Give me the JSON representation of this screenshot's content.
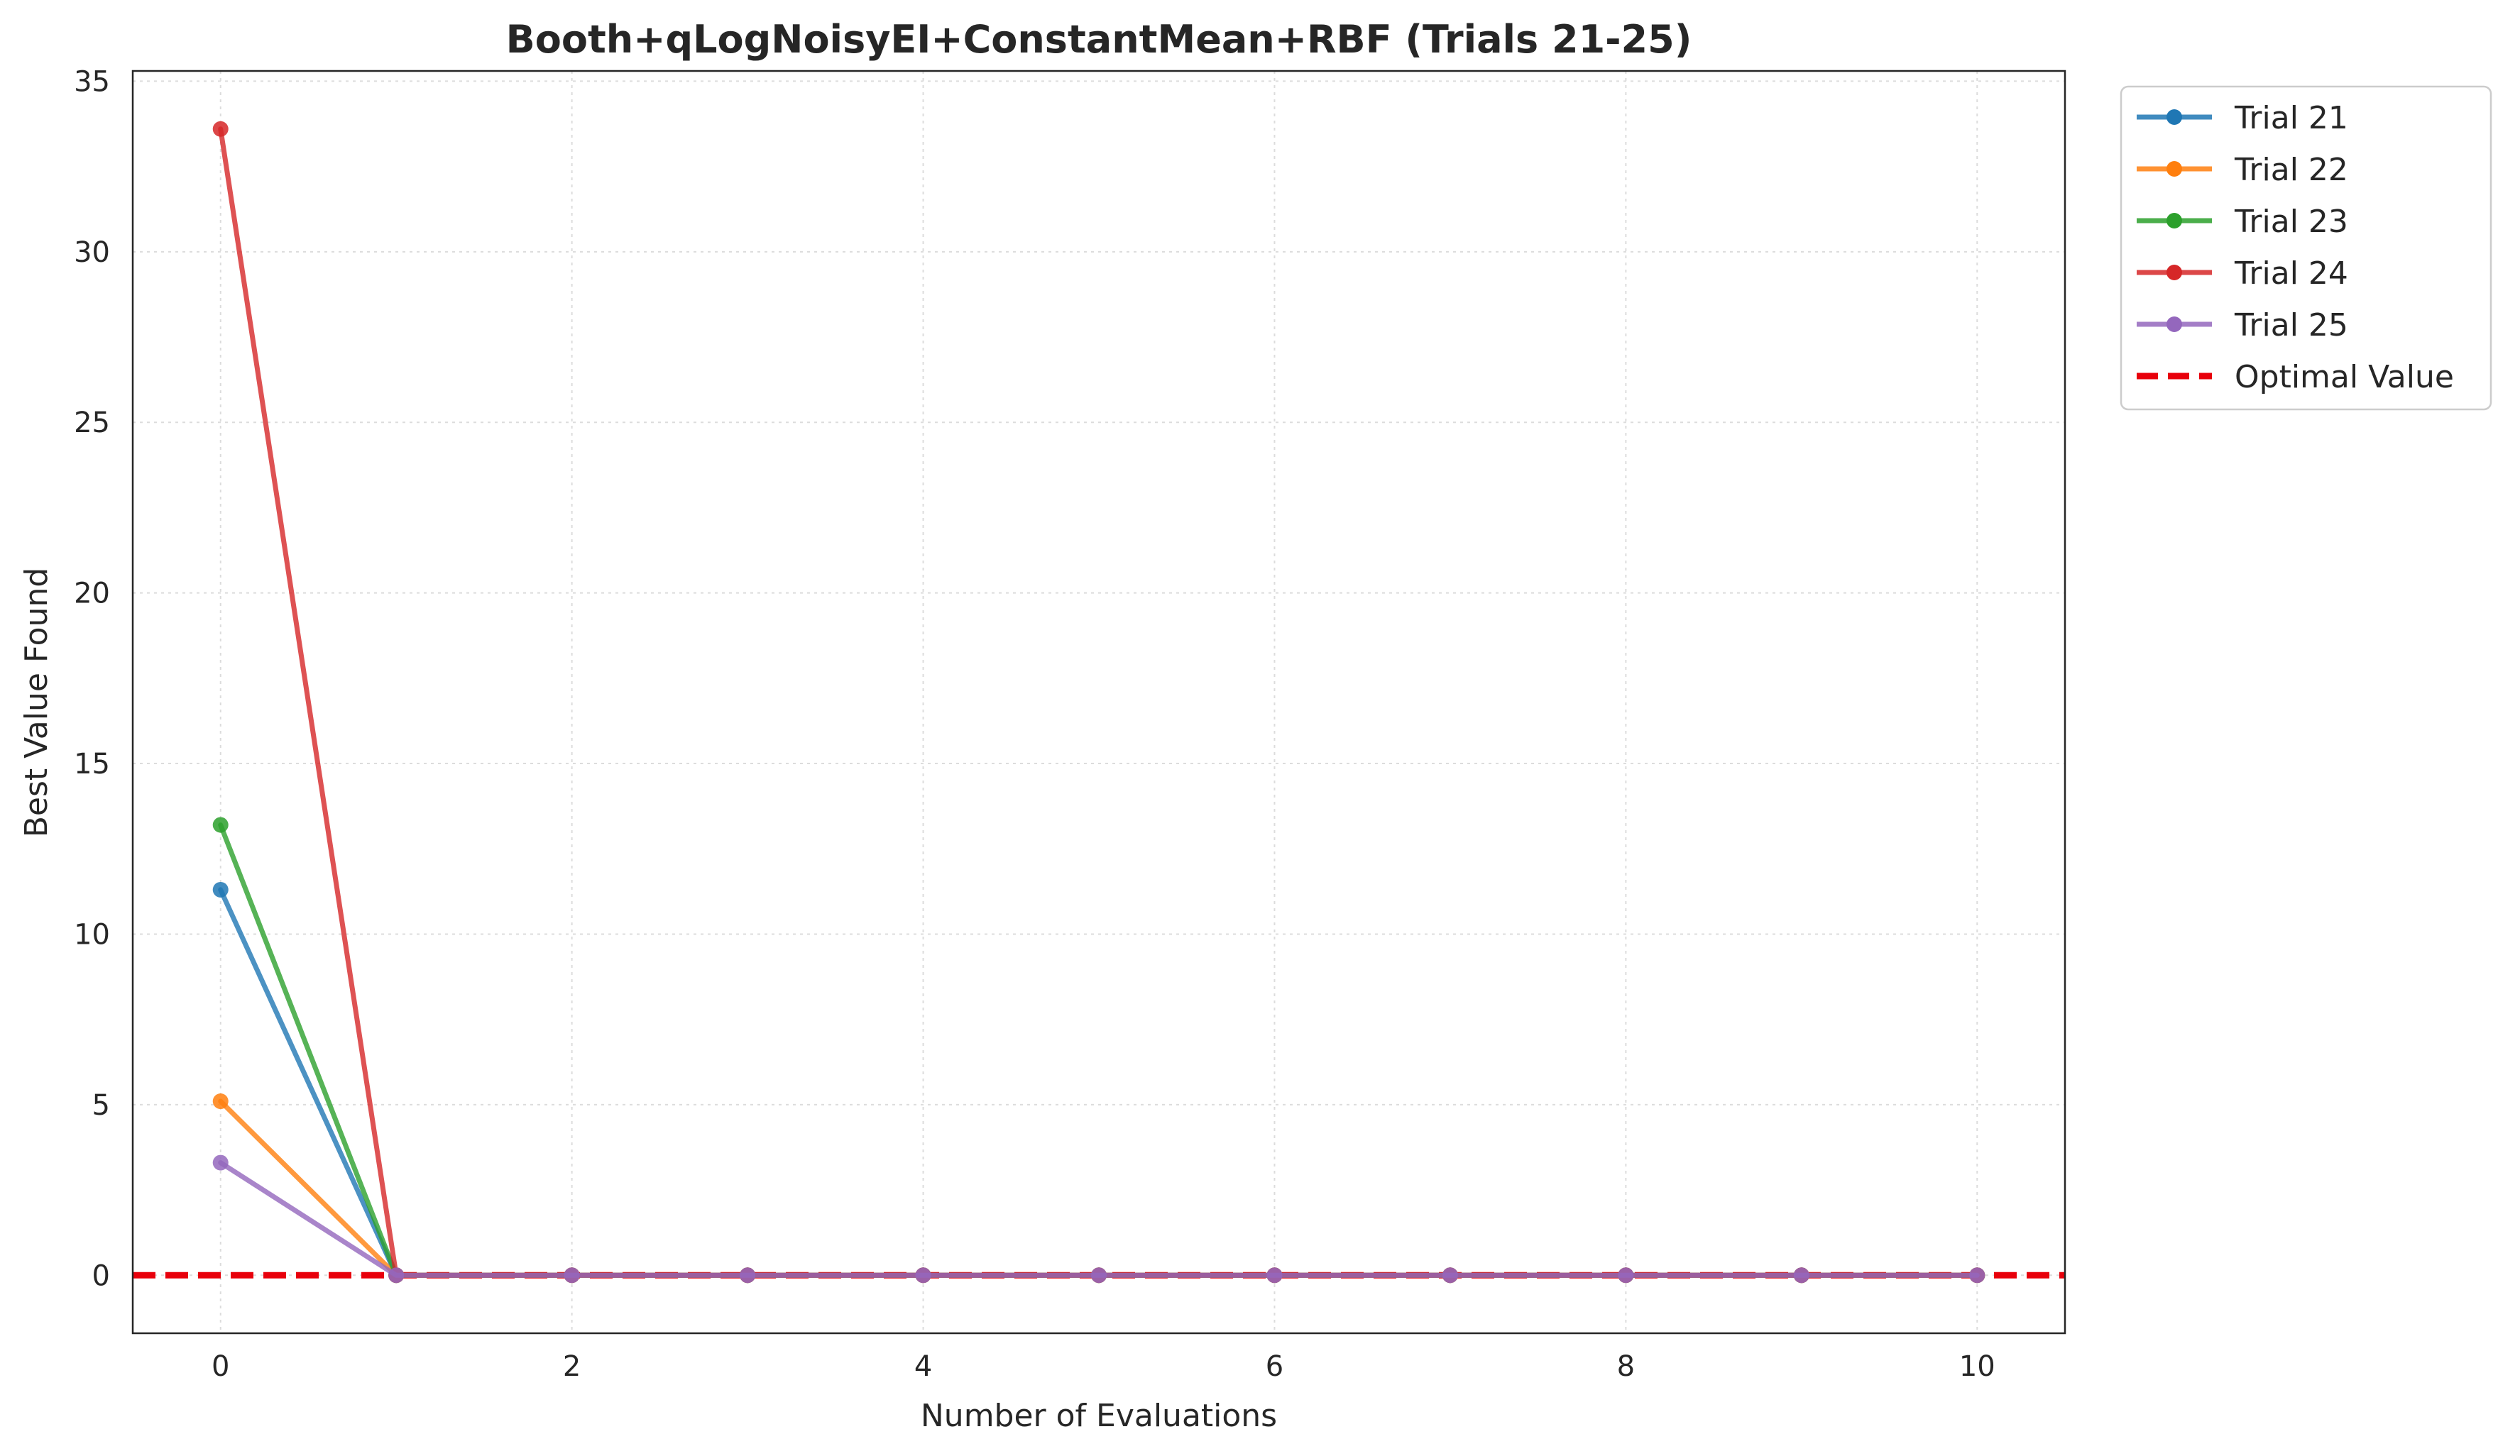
{
  "chart_data": {
    "type": "line",
    "title": "Booth+qLogNoisyEI+ConstantMean+RBF (Trials 21-25)",
    "xlabel": "Number of Evaluations",
    "ylabel": "Best Value Found",
    "xlim": [
      -0.5,
      10.5
    ],
    "ylim": [
      -1.7,
      35.3
    ],
    "xticks": [
      0,
      2,
      4,
      6,
      8,
      10
    ],
    "yticks": [
      0,
      5,
      10,
      15,
      20,
      25,
      30,
      35
    ],
    "grid": true,
    "legend_position": "outside-top-right",
    "x": [
      0,
      1,
      2,
      3,
      4,
      5,
      6,
      7,
      8,
      9,
      10
    ],
    "series": [
      {
        "name": "Trial 21",
        "color": "#1f77b4",
        "values": [
          11.3,
          0,
          0,
          0,
          0,
          0,
          0,
          0,
          0,
          0,
          0
        ]
      },
      {
        "name": "Trial 22",
        "color": "#ff7f0e",
        "values": [
          5.1,
          0,
          0,
          0,
          0,
          0,
          0,
          0,
          0,
          0,
          0
        ]
      },
      {
        "name": "Trial 23",
        "color": "#2ca02c",
        "values": [
          13.2,
          0,
          0,
          0,
          0,
          0,
          0,
          0,
          0,
          0,
          0
        ]
      },
      {
        "name": "Trial 24",
        "color": "#d62728",
        "values": [
          33.6,
          0,
          0,
          0,
          0,
          0,
          0,
          0,
          0,
          0,
          0
        ]
      },
      {
        "name": "Trial 25",
        "color": "#9467bd",
        "values": [
          3.3,
          0,
          0,
          0,
          0,
          0,
          0,
          0,
          0,
          0,
          0
        ]
      }
    ],
    "reference_line": {
      "name": "Optimal Value",
      "y": 0,
      "color": "#e8000b",
      "style": "dashed"
    }
  }
}
